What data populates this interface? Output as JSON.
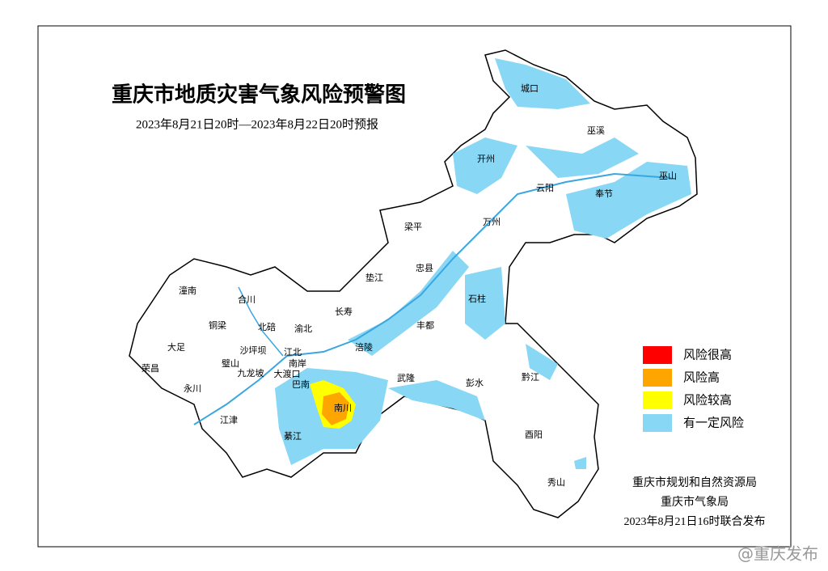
{
  "header": {
    "title": "重庆市地质灾害气象风险预警图",
    "subtitle": "2023年8月21日20时—2023年8月22日20时预报"
  },
  "districts": [
    "城口",
    "巫溪",
    "开州",
    "云阳",
    "奉节",
    "巫山",
    "梁平",
    "万州",
    "忠县",
    "垫江",
    "石柱",
    "潼南",
    "合川",
    "长寿",
    "铜梁",
    "北碚",
    "渝北",
    "丰都",
    "大足",
    "沙坪坝",
    "江北",
    "涪陵",
    "璧山",
    "南岸",
    "荣昌",
    "九龙坡",
    "大渡口",
    "巴南",
    "武隆",
    "彭水",
    "黔江",
    "永川",
    "江津",
    "南川",
    "綦江",
    "酉阳",
    "秀山"
  ],
  "legend": [
    {
      "label": "风险很高",
      "color": "#ff0000"
    },
    {
      "label": "风险高",
      "color": "#ffa500"
    },
    {
      "label": "风险较高",
      "color": "#ffff00"
    },
    {
      "label": "有一定风险",
      "color": "#87d7f5"
    }
  ],
  "footer": {
    "issuers": [
      "重庆市规划和自然资源局",
      "重庆市气象局"
    ],
    "issued": "2023年8月21日16时联合发布"
  },
  "watermark": "@重庆发布"
}
